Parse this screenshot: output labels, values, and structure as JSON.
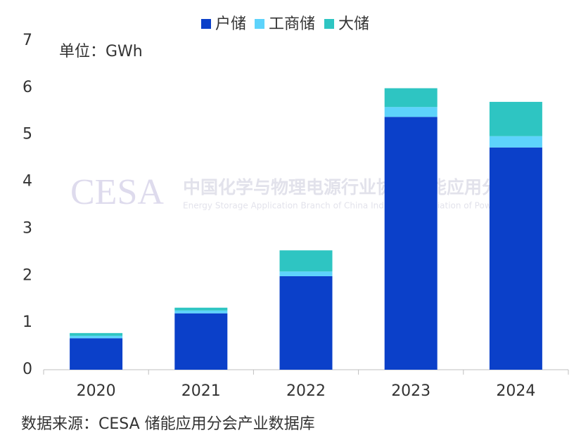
{
  "chart_data": {
    "type": "stacked_bar",
    "unit_label": "单位：GWh",
    "source": "数据来源：CESA 储能应用分会产业数据库",
    "watermark": {
      "logo": "CESA",
      "name": "中国化学与物理电源行业协会储能应用分会",
      "name_en": "Energy Storage Application Branch of China Industrial Association of Power Sources"
    },
    "categories": [
      "2020",
      "2021",
      "2022",
      "2023",
      "2024"
    ],
    "series": [
      {
        "name": "户储",
        "color": "#0b40c9",
        "values": [
          0.67,
          1.2,
          1.99,
          5.38,
          4.73
        ]
      },
      {
        "name": "工商储",
        "color": "#5dd3fb",
        "values": [
          0.05,
          0.06,
          0.1,
          0.21,
          0.24
        ]
      },
      {
        "name": "大储",
        "color": "#2ec5c2",
        "values": [
          0.06,
          0.06,
          0.45,
          0.4,
          0.73
        ]
      }
    ],
    "ylim": [
      0,
      7
    ],
    "yticks": [
      0,
      1,
      2,
      3,
      4,
      5,
      6,
      7
    ],
    "legend": "top"
  }
}
